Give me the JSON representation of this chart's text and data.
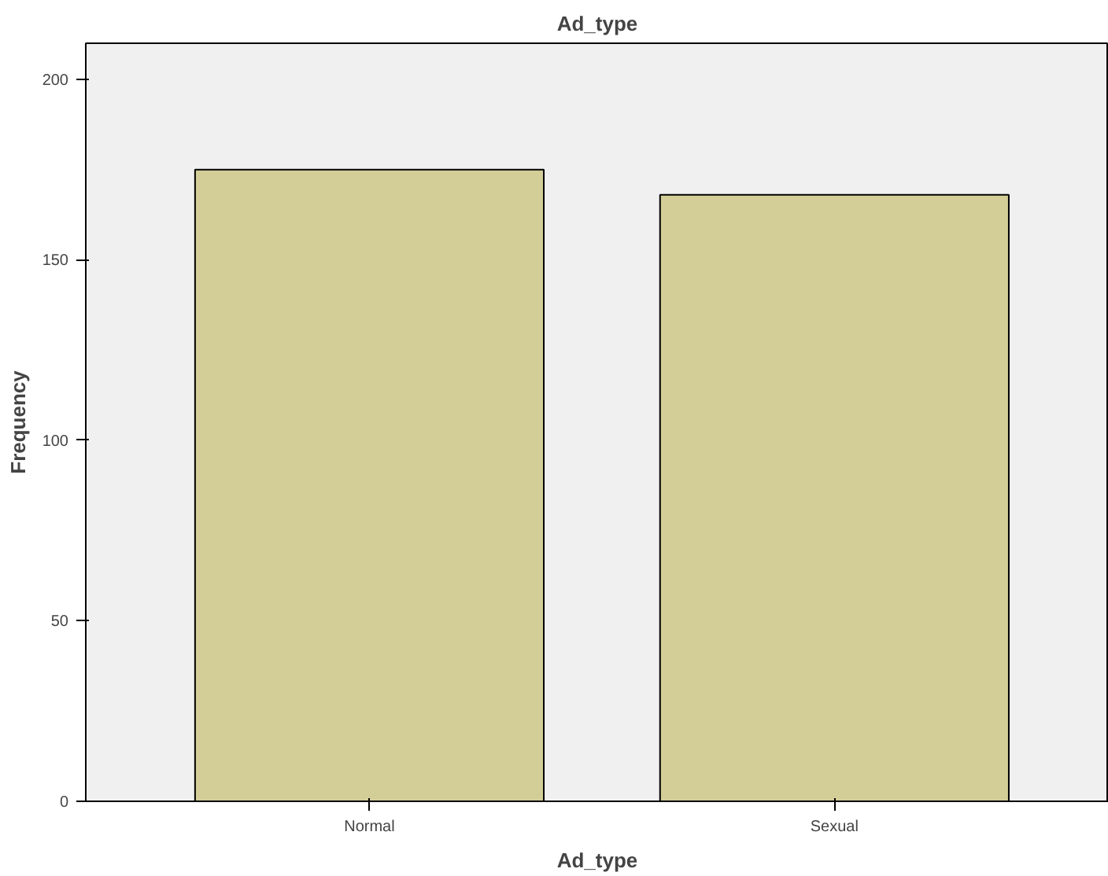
{
  "chart_data": {
    "type": "bar",
    "title": "Ad_type",
    "xlabel": "Ad_type",
    "ylabel": "Frequency",
    "categories": [
      "Normal",
      "Sexual"
    ],
    "values": [
      175,
      168
    ],
    "color": "#d3ce97",
    "ylim": [
      0,
      210
    ],
    "yticks": [
      0,
      50,
      100,
      150,
      200
    ],
    "grid": false
  }
}
